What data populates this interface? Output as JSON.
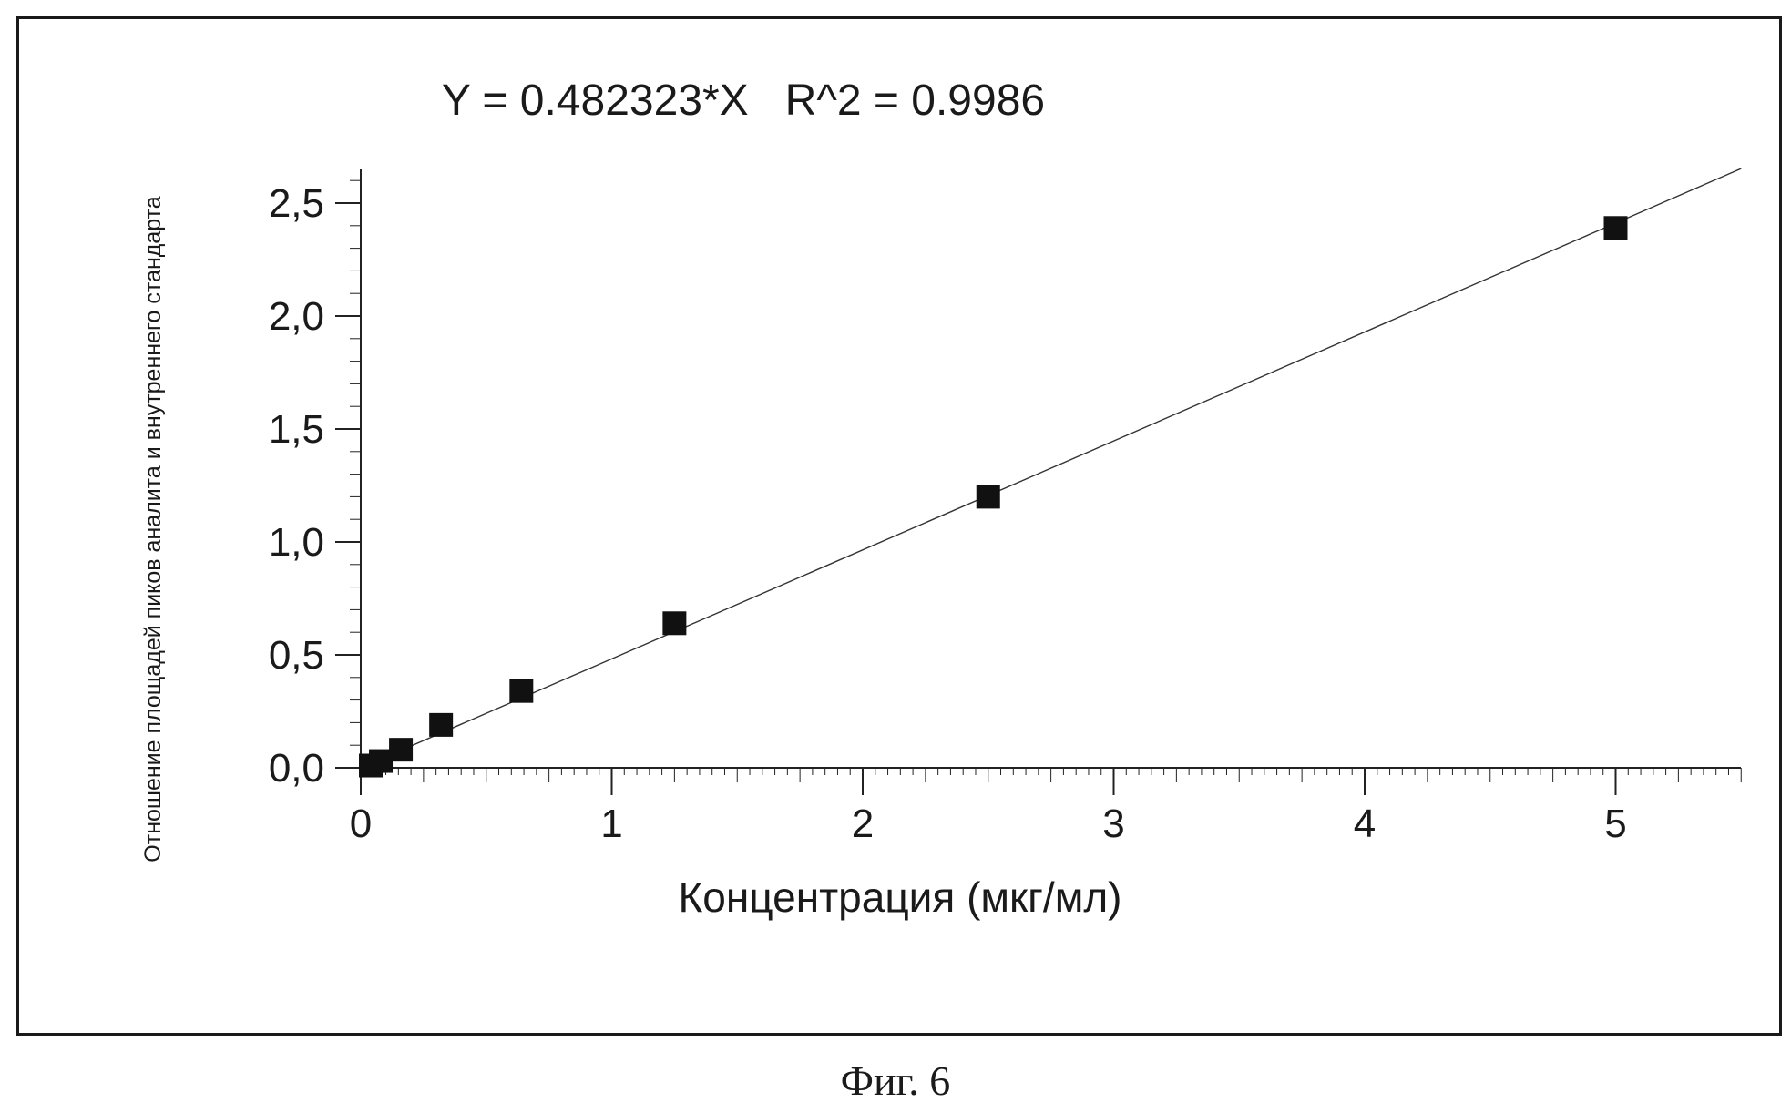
{
  "chart_data": {
    "type": "scatter",
    "title": "Y = 0.482323*X   R^2 = 0.9986",
    "xlabel": "Концентрация (мкг/мл)",
    "ylabel": "Отношение площадей пиков аналита и внутреннего стандарта",
    "xlim": [
      0,
      5.5
    ],
    "ylim": [
      0,
      2.65
    ],
    "x_ticks": [
      0,
      1,
      2,
      3,
      4,
      5
    ],
    "x_tick_labels": [
      "0",
      "1",
      "2",
      "3",
      "4",
      "5"
    ],
    "y_ticks": [
      0,
      0.5,
      1.0,
      1.5,
      2.0,
      2.5
    ],
    "y_tick_labels": [
      "0,0",
      "0,5",
      "1,0",
      "1,5",
      "2,0",
      "2,5"
    ],
    "grid": false,
    "series": [
      {
        "x": [
          0.04,
          0.08,
          0.16,
          0.32,
          0.64,
          1.25,
          2.5,
          5.0
        ],
        "y": [
          0.01,
          0.03,
          0.08,
          0.19,
          0.34,
          0.64,
          1.2,
          2.39
        ]
      }
    ],
    "fit_line": {
      "slope": 0.482323,
      "intercept": 0,
      "x_range": [
        0,
        5.5
      ]
    }
  },
  "caption": "Фиг. 6"
}
